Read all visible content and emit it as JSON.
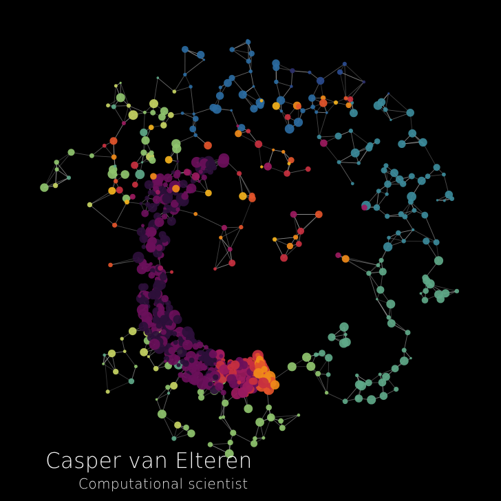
{
  "title": "Casper van Elteren",
  "subtitle": "Computational scientist",
  "colors": {
    "background": "#000000",
    "edge": "#bfbfbf",
    "text": "#f2f2f2",
    "palette": [
      "#2c0f3a",
      "#6a0f5a",
      "#9b1a5e",
      "#c8303f",
      "#e3542a",
      "#f08a19",
      "#f4b21c",
      "#efd54a",
      "#c7d563",
      "#8fc46e",
      "#5ea888",
      "#3b8a9a",
      "#2a6aa0",
      "#2a4b8f",
      "#2b2f6b"
    ]
  },
  "graphic": "network-graph-icon"
}
